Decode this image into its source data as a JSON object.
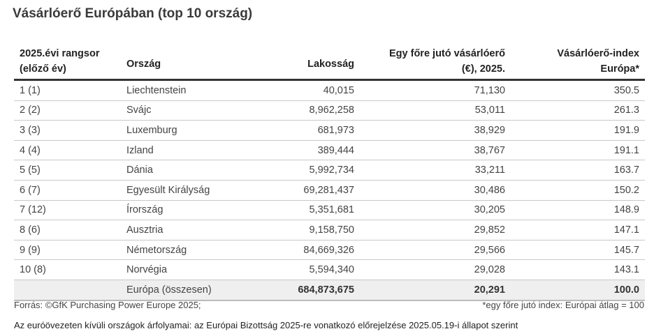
{
  "title": "Vásárlóerő Európában (top 10 ország)",
  "headers": {
    "rank_line1": "2025.évi rangsor",
    "rank_line2": "(előző év)",
    "country": "Ország",
    "population": "Lakosság",
    "per_capita_line1": "Egy főre jutó vásárlóerő",
    "per_capita_line2": "(€), 2025.",
    "index_line1": "Vásárlóerő-index",
    "index_line2": "Európa*"
  },
  "rows": [
    {
      "rank": "1 (1)",
      "country": "Liechtenstein",
      "population": "40,015",
      "per_capita": "71,130",
      "index": "350.5"
    },
    {
      "rank": "2 (2)",
      "country": "Svájc",
      "population": "8,962,258",
      "per_capita": "53,011",
      "index": "261.3"
    },
    {
      "rank": "3 (3)",
      "country": "Luxemburg",
      "population": "681,973",
      "per_capita": "38,929",
      "index": "191.9"
    },
    {
      "rank": "4 (4)",
      "country": "Izland",
      "population": "389,444",
      "per_capita": "38,767",
      "index": "191.1"
    },
    {
      "rank": "5 (5)",
      "country": "Dánia",
      "population": "5,992,734",
      "per_capita": "33,211",
      "index": "163.7"
    },
    {
      "rank": "6 (7)",
      "country": "Egyesült Királyság",
      "population": "69,281,437",
      "per_capita": "30,486",
      "index": "150.2"
    },
    {
      "rank": "7 (12)",
      "country": "Írország",
      "population": "5,351,681",
      "per_capita": "30,205",
      "index": "148.9"
    },
    {
      "rank": "8 (6)",
      "country": "Ausztria",
      "population": "9,158,750",
      "per_capita": "29,852",
      "index": "147.1"
    },
    {
      "rank": "9 (9)",
      "country": "Németország",
      "population": "84,669,326",
      "per_capita": "29,566",
      "index": "145.7"
    },
    {
      "rank": "10 (8)",
      "country": "Norvégia",
      "population": "5,594,340",
      "per_capita": "29,028",
      "index": "143.1"
    }
  ],
  "total": {
    "country": "Európa (összesen)",
    "population": "684,873,675",
    "per_capita": "20,291",
    "index": "100.0"
  },
  "footer": {
    "source": "Forrás: ©GfK Purchasing Power Europe 2025;",
    "note": "*egy főre jutó index: Európai átlag = 100",
    "exchange": "Az euróövezeten kívüli országok árfolyamai: az Európai Bizottság 2025-re vonatkozó előrejelzése 2025.05.19-i állapot szerint"
  }
}
